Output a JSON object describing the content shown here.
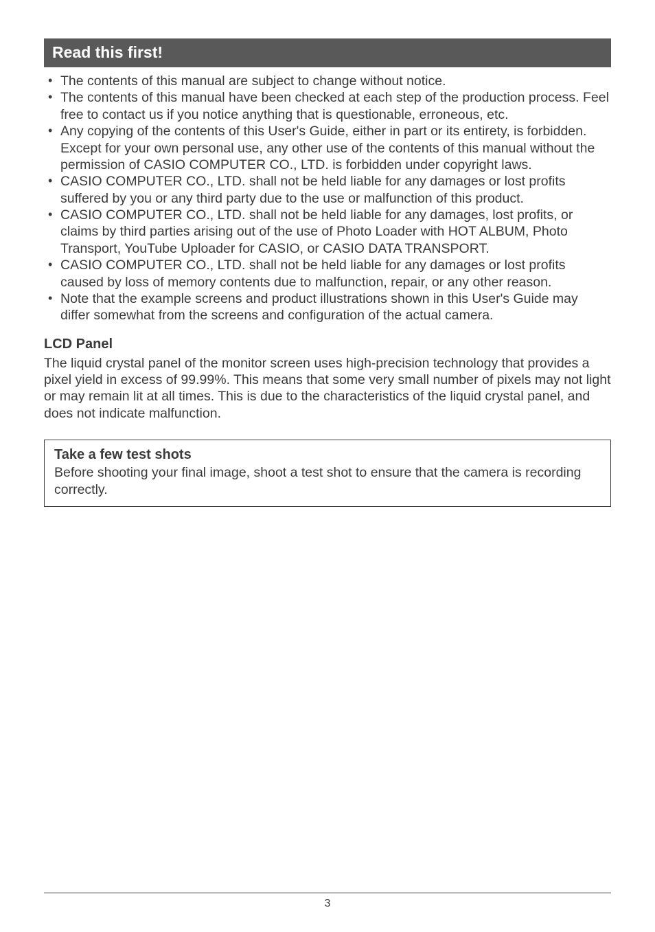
{
  "colors": {
    "page_bg": "#ffffff",
    "text": "#3a3a3a",
    "header_bg": "#595959",
    "header_text": "#ffffff",
    "footer_line": "#b9b9b9",
    "box_border": "#3a3a3a"
  },
  "typography": {
    "body_fontsize_pt": 15,
    "header_fontsize_pt": 17,
    "subheading_fontsize_pt": 15,
    "line_height": 1.25,
    "font_family": "Arial"
  },
  "header": {
    "title": "Read this first!"
  },
  "bullets": [
    "The contents of this manual are subject to change without notice.",
    "The contents of this manual have been checked at each step of the production process. Feel free to contact us if you notice anything that is questionable, erroneous, etc.",
    "Any copying of the contents of this User's Guide, either in part or its entirety, is forbidden. Except for your own personal use, any other use of the contents of this manual without the permission of CASIO COMPUTER CO., LTD. is forbidden under copyright laws.",
    "CASIO COMPUTER CO., LTD. shall not be held liable for any damages or lost profits suffered by you or any third party due to the use or malfunction of this product.",
    "CASIO COMPUTER CO., LTD. shall not be held liable for any damages, lost profits, or claims by third parties arising out of the use of Photo Loader with HOT ALBUM, Photo Transport, YouTube Uploader for CASIO, or CASIO DATA TRANSPORT.",
    "CASIO COMPUTER CO., LTD. shall not be held liable for any damages or lost profits caused by loss of memory contents due to malfunction, repair, or any other reason.",
    "Note that the example screens and product illustrations shown in this User's Guide may differ somewhat from the screens and configuration of the actual camera."
  ],
  "lcd": {
    "heading": "LCD Panel",
    "body": "The liquid crystal panel of the monitor screen uses high-precision technology that provides a pixel yield in excess of 99.99%. This means that some very small number of pixels may not light or may remain lit at all times. This is due to the characteristics of the liquid crystal panel, and does not indicate malfunction."
  },
  "note": {
    "title": "Take a few test shots",
    "body": "Before shooting your final image, shoot a test shot to ensure that the camera is recording correctly."
  },
  "footer": {
    "page_number": "3"
  }
}
